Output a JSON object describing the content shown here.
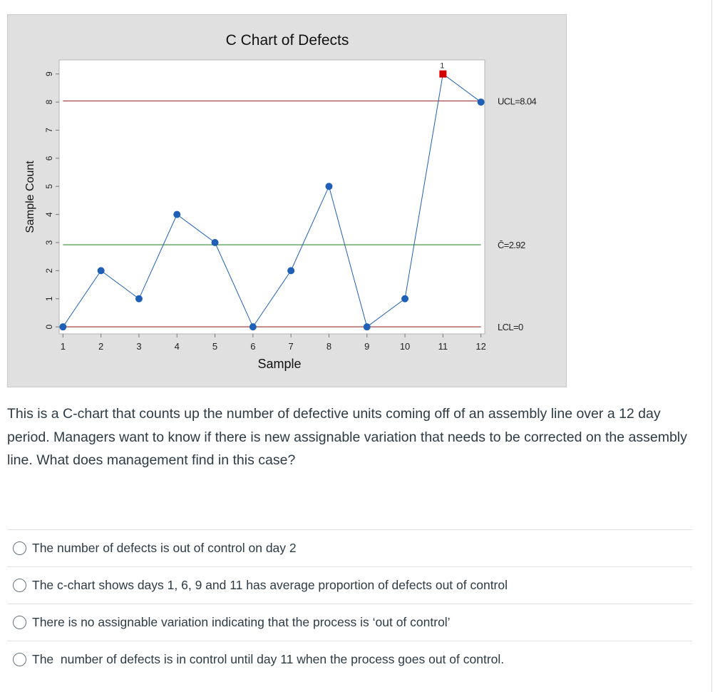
{
  "chart_data": {
    "type": "line",
    "title": "C Chart of Defects",
    "xlabel": "Sample",
    "ylabel": "Sample Count",
    "x": [
      1,
      2,
      3,
      4,
      5,
      6,
      7,
      8,
      9,
      10,
      11,
      12
    ],
    "x_ticks": [
      "1",
      "2",
      "3",
      "4",
      "5",
      "6",
      "7",
      "8",
      "9",
      "10",
      "11",
      "12"
    ],
    "y_ticks": [
      "0",
      "1",
      "2",
      "3",
      "4",
      "5",
      "6",
      "7",
      "8",
      "9"
    ],
    "ylim": [
      -0.25,
      9.5
    ],
    "xlim": [
      0.9,
      12.1
    ],
    "series": [
      {
        "values": [
          0,
          2,
          1,
          4,
          3,
          0,
          2,
          5,
          0,
          1,
          9,
          8
        ]
      }
    ],
    "out_of_control_points": [
      {
        "x": 11,
        "test_label": "1"
      }
    ],
    "control_limits": {
      "ucl": {
        "value": 8.04,
        "label": "UCL=8.04"
      },
      "center": {
        "value": 2.92,
        "label": "C̄=2.92"
      },
      "lcl": {
        "value": 0,
        "label": "LCL=0"
      }
    },
    "grid": false,
    "colors": {
      "series": "#1f5fb5",
      "out_of_control": "#d40000",
      "limits": "#a34545",
      "center": "#4a9a4a",
      "frame_background": "#e0e0e0",
      "plot_background": "#ffffff"
    }
  },
  "question": {
    "text": "This is a C-chart that counts up the number of defective units coming off of an assembly line over a 12 day period. Managers want to know if there is new assignable variation that needs to be corrected on the assembly line.  What does management find in this case?"
  },
  "answers": [
    {
      "label": "The number of defects is out of control on day 2"
    },
    {
      "label": "The c-chart shows days 1, 6, 9 and 11 has average proportion of defects out of control"
    },
    {
      "label": "There is no assignable variation indicating that the process is ‘out of control’"
    },
    {
      "label": "The  number of defects is in control until day 11 when the process goes out of control."
    }
  ]
}
